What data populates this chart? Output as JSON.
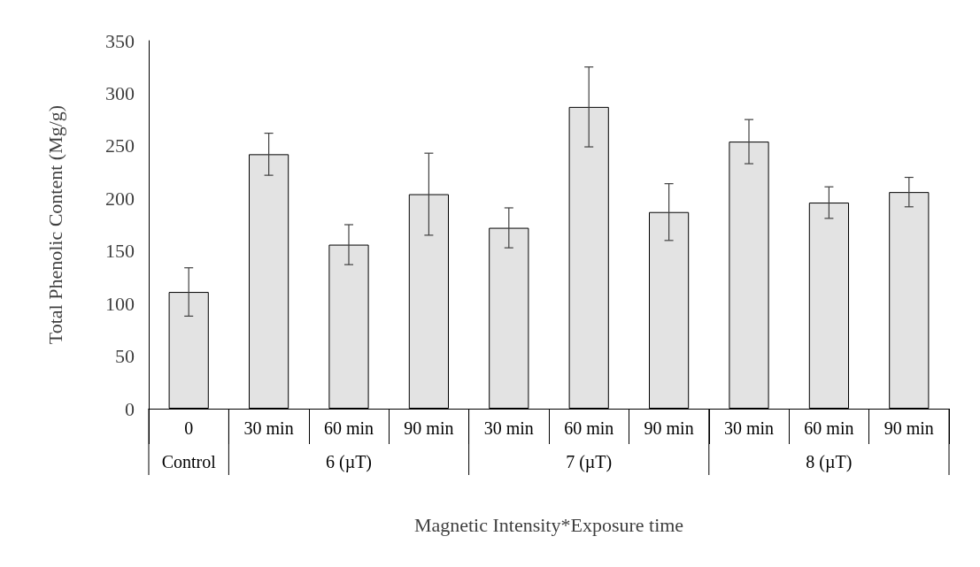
{
  "chart_data": {
    "type": "bar",
    "xlabel": "Magnetic Intensity*Exposure time",
    "ylabel": "Total Phenolic Content (Mg/g)",
    "categories": [
      "0",
      "30 min",
      "60 min",
      "90 min",
      "30 min",
      "60 min",
      "90 min",
      "30 min",
      "60 min",
      "90 min"
    ],
    "values": [
      111,
      242,
      156,
      204,
      172,
      287,
      187,
      254,
      196,
      206
    ],
    "errors": [
      23,
      20,
      19,
      39,
      19,
      38,
      27,
      21,
      15,
      14
    ],
    "color": "#e3e3e3",
    "ylim": [
      0,
      350
    ],
    "yticks": [
      0,
      50,
      100,
      150,
      200,
      250,
      300,
      350
    ],
    "grid": false,
    "annotations": [
      "Control",
      "6 (µT)",
      "7 (µT)",
      "8 (µT)"
    ]
  }
}
